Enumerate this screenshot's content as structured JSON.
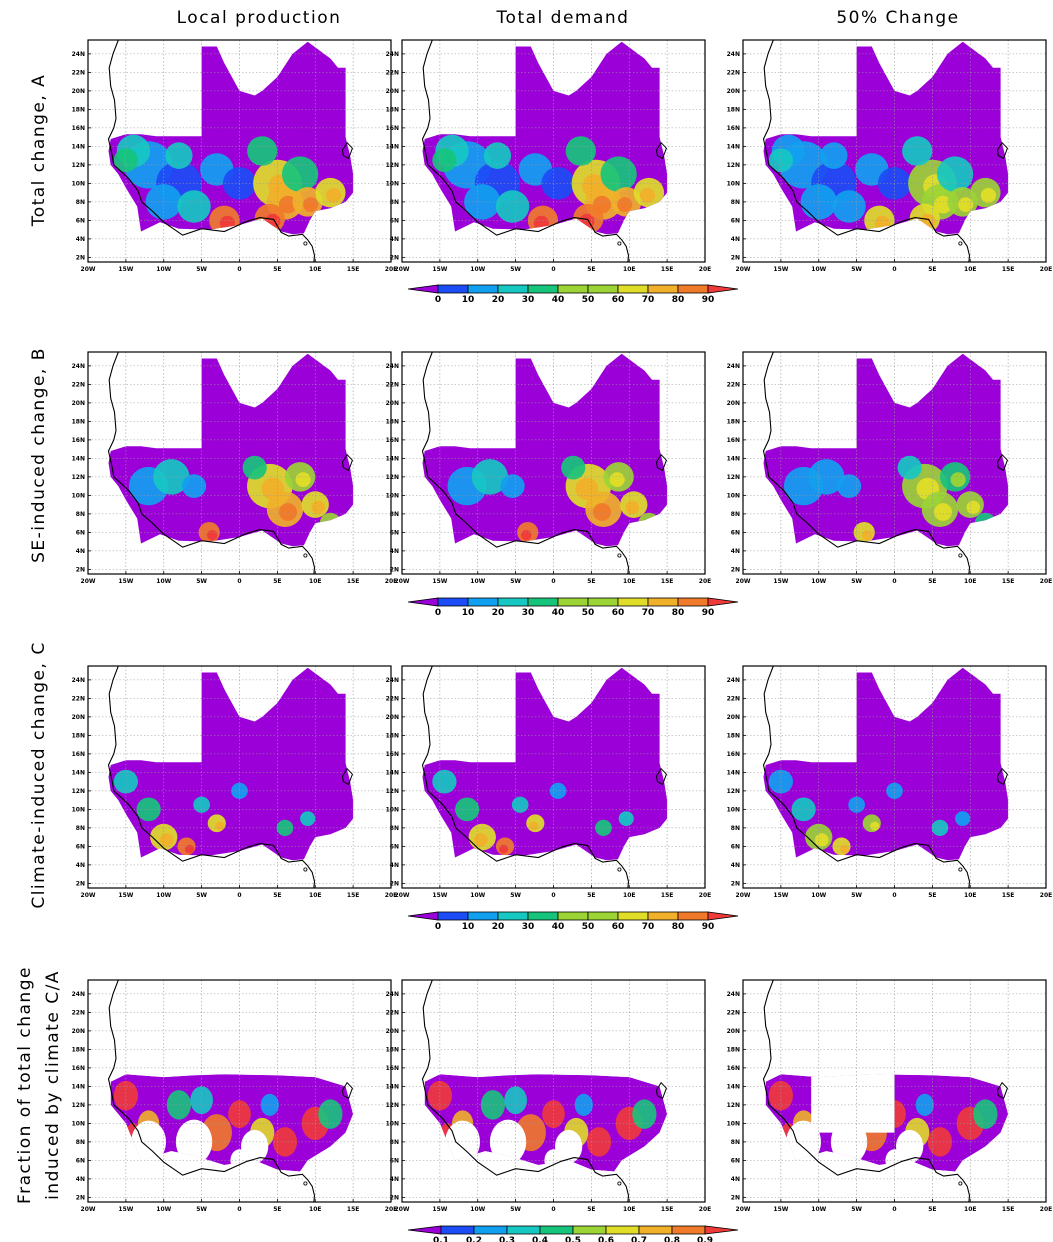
{
  "chart_data": {
    "type": "heatmap",
    "region": "West Africa",
    "column_titles": [
      "Local production",
      "Total demand",
      "50% Change"
    ],
    "row_labels": [
      [
        "Total change, A"
      ],
      [
        "SE-induced change, B"
      ],
      [
        "Climate-induced change, C"
      ],
      [
        "Fraction of total change",
        "induced by climate C/A"
      ]
    ],
    "x_ticks": [
      "20W",
      "15W",
      "10W",
      "5W",
      "0",
      "5E",
      "10E",
      "15E",
      "20E"
    ],
    "y_ticks": [
      "2N",
      "4N",
      "6N",
      "8N",
      "10N",
      "12N",
      "14N",
      "16N",
      "18N",
      "20N",
      "22N",
      "24N"
    ],
    "xlim": [
      -20,
      20
    ],
    "ylim": [
      1.5,
      25.5
    ],
    "grid": true,
    "colorbars": [
      {
        "row": 0,
        "levels": [
          "0",
          "10",
          "20",
          "30",
          "40",
          "50",
          "60",
          "70",
          "80",
          "90"
        ]
      },
      {
        "row": 1,
        "levels": [
          "0",
          "10",
          "20",
          "30",
          "40",
          "50",
          "60",
          "70",
          "80",
          "90"
        ]
      },
      {
        "row": 2,
        "levels": [
          "0",
          "10",
          "20",
          "30",
          "40",
          "50",
          "60",
          "70",
          "80",
          "90"
        ]
      },
      {
        "row": 3,
        "levels": [
          "0.1",
          "0.2",
          "0.3",
          "0.4",
          "0.5",
          "0.6",
          "0.7",
          "0.8",
          "0.9"
        ]
      }
    ],
    "palette": [
      "#9b00d8",
      "#1c4cf5",
      "#11a0f0",
      "#16c7c2",
      "#17c47c",
      "#9bd434",
      "#e0dd28",
      "#f0b02a",
      "#f07a2a",
      "#ef3a3a"
    ]
  }
}
